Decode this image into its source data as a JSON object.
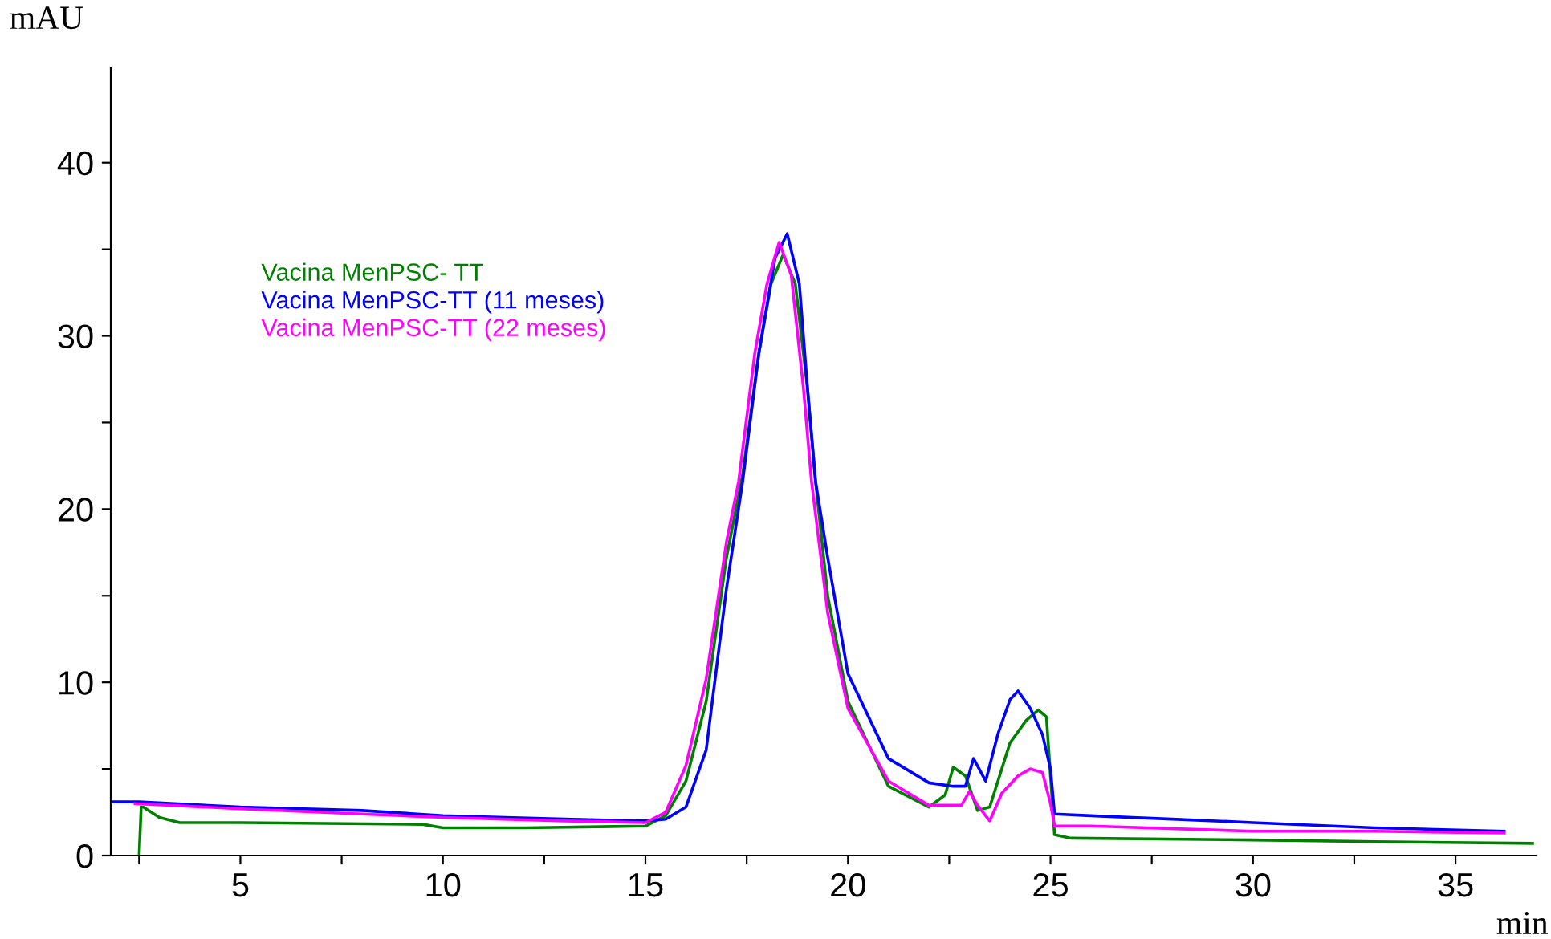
{
  "chart_data": {
    "type": "line",
    "xlabel": "min",
    "ylabel": "mAU",
    "xlim": [
      1.8,
      37
    ],
    "ylim": [
      0,
      45.5
    ],
    "xticks": [
      {
        "value": 2.5,
        "label": null
      },
      5,
      {
        "value": 7.5,
        "label": null
      },
      10,
      {
        "value": 12.5,
        "label": null
      },
      15,
      {
        "value": 17.5,
        "label": null
      },
      20,
      {
        "value": 22.5,
        "label": null
      },
      25,
      {
        "value": 27.5,
        "label": null
      },
      30,
      {
        "value": 32.5,
        "label": null
      },
      35
    ],
    "yticks": [
      0,
      {
        "value": 5,
        "label": null
      },
      10,
      {
        "value": 15,
        "label": null
      },
      20,
      {
        "value": 25,
        "label": null
      },
      30,
      {
        "value": 35,
        "label": null
      },
      40
    ],
    "grid": false,
    "legend": "upper left",
    "line_style": "solid",
    "marker": "none",
    "series": [
      {
        "name": "Vacina MenPSC- TT",
        "color": "#008000",
        "x": [
          2.5,
          2.55,
          2.6,
          3.0,
          3.5,
          5,
          9.5,
          10,
          12,
          15,
          15.5,
          16,
          16.5,
          17,
          17.4,
          17.8,
          18.1,
          18.4,
          18.7,
          19.0,
          19.2,
          19.5,
          20,
          21,
          22,
          22.4,
          22.6,
          22.9,
          23.2,
          23.5,
          24.0,
          24.4,
          24.7,
          24.9,
          25.1,
          25.5,
          30,
          33,
          36.9
        ],
        "values": [
          0,
          2.8,
          2.8,
          2.2,
          1.9,
          1.9,
          1.8,
          1.6,
          1.6,
          1.7,
          2.3,
          4.3,
          8.9,
          17.2,
          22,
          29,
          33,
          34.7,
          33,
          27,
          21.6,
          15,
          8.9,
          4.0,
          2.8,
          3.5,
          5.1,
          4.6,
          2.6,
          2.8,
          6.5,
          7.8,
          8.4,
          8.0,
          1.2,
          1.0,
          0.9,
          0.8,
          0.7
        ]
      },
      {
        "name": "Vacina MenPSC-TT (11 meses)",
        "color": "#0000ff",
        "x": [
          1.8,
          2.5,
          5,
          8,
          10,
          13,
          15,
          15.5,
          16,
          16.5,
          17,
          17.4,
          17.8,
          18.2,
          18.5,
          18.8,
          19.0,
          19.2,
          19.5,
          20,
          21,
          22,
          22.6,
          22.9,
          23.1,
          23.4,
          23.7,
          24.0,
          24.2,
          24.5,
          24.8,
          25.0,
          25.1,
          26,
          28,
          30,
          33,
          36.2
        ],
        "values": [
          3.1,
          3.1,
          2.8,
          2.6,
          2.3,
          2.1,
          2.0,
          2.1,
          2.8,
          6.1,
          15.4,
          21.6,
          29,
          34.5,
          35.9,
          33,
          27,
          21.6,
          17.2,
          10.5,
          5.6,
          4.2,
          4.0,
          4.0,
          5.6,
          4.3,
          7.0,
          9.0,
          9.5,
          8.5,
          7.0,
          5.0,
          2.4,
          2.3,
          2.1,
          1.9,
          1.6,
          1.4
        ]
      },
      {
        "name": "Vacina MenPSC-TT (22 meses)",
        "color": "#ff00ff",
        "x": [
          2.4,
          5,
          8,
          10,
          13,
          15,
          15.5,
          16,
          16.5,
          17,
          17.3,
          17.7,
          18.0,
          18.3,
          18.6,
          18.9,
          19.1,
          19.5,
          20,
          21,
          22,
          22.8,
          23.0,
          23.2,
          23.5,
          23.8,
          24.2,
          24.5,
          24.8,
          25.0,
          25.1,
          26,
          30,
          33,
          36.2
        ],
        "values": [
          3.0,
          2.7,
          2.4,
          2.2,
          2.0,
          1.9,
          2.5,
          5.2,
          10.2,
          18.1,
          21.6,
          29,
          33,
          35.4,
          33.5,
          27,
          21.6,
          14,
          8.5,
          4.3,
          2.9,
          2.9,
          3.7,
          2.9,
          2.0,
          3.6,
          4.6,
          5.0,
          4.8,
          3.0,
          1.7,
          1.7,
          1.4,
          1.4,
          1.3
        ]
      }
    ]
  }
}
